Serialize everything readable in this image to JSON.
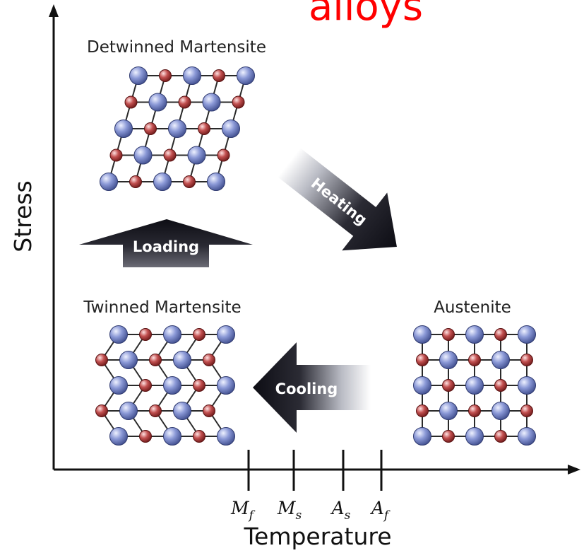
{
  "title_fragment": "alloys",
  "axes": {
    "y_label": "Stress",
    "x_label": "Temperature",
    "ticks": [
      {
        "main": "M",
        "sub": "f"
      },
      {
        "main": "M",
        "sub": "s"
      },
      {
        "main": "A",
        "sub": "s"
      },
      {
        "main": "A",
        "sub": "f"
      }
    ]
  },
  "phases": {
    "detwinned": "Detwinned Martensite",
    "twinned": "Twinned Martensite",
    "austenite": "Austenite"
  },
  "arrows": {
    "loading": "Loading",
    "heating": "Heating",
    "cooling": "Cooling"
  },
  "colors": {
    "title": "#ff0000",
    "blue_atom": "#6e7ec4",
    "red_atom": "#b03a3a",
    "arrow_dark": "#15151c"
  }
}
